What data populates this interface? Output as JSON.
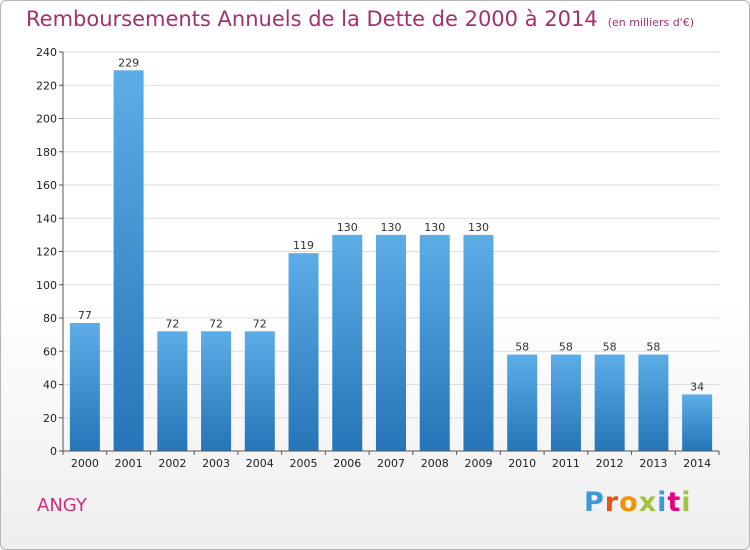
{
  "header": {
    "title": "Remboursements Annuels de la Dette de 2000 à 2014",
    "subtitle": "(en milliers d'€)"
  },
  "footer": {
    "commune": "ANGY",
    "logo_text": "Proxiti",
    "logo_colors": [
      "#3a9ad9",
      "#e94e1b",
      "#f39200",
      "#a3c13e",
      "#3a9ad9",
      "#e6007e",
      "#a3c13e"
    ]
  },
  "chart_data": {
    "type": "bar",
    "title": "Remboursements Annuels de la Dette de 2000 à 2014",
    "subtitle": "(en milliers d'€)",
    "xlabel": "",
    "ylabel": "",
    "categories": [
      "2000",
      "2001",
      "2002",
      "2003",
      "2004",
      "2005",
      "2006",
      "2007",
      "2008",
      "2009",
      "2010",
      "2011",
      "2012",
      "2013",
      "2014"
    ],
    "values": [
      77,
      229,
      72,
      72,
      72,
      119,
      130,
      130,
      130,
      130,
      58,
      58,
      58,
      58,
      34
    ],
    "ylim": [
      0,
      240
    ],
    "yticks": [
      0,
      20,
      40,
      60,
      80,
      100,
      120,
      140,
      160,
      180,
      200,
      220,
      240
    ],
    "grid": true,
    "bar_color_top": "#5dade8",
    "bar_color_bottom": "#2575b8"
  }
}
